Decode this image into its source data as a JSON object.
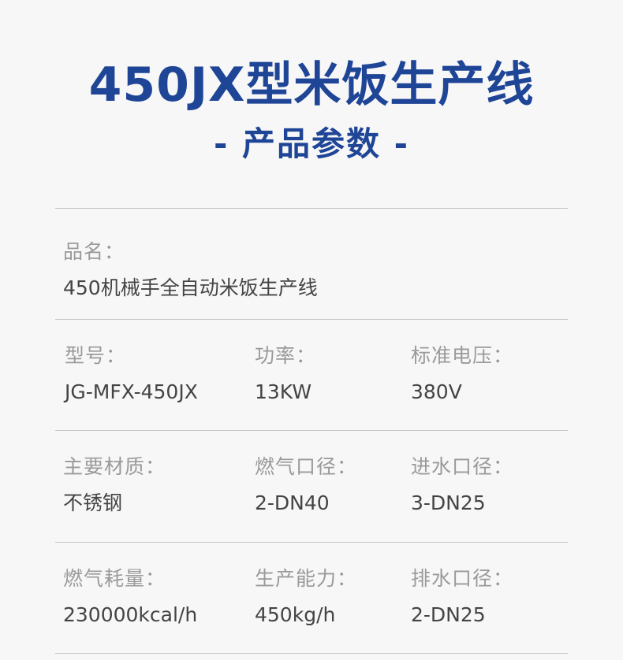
{
  "header": {
    "title": "450JX型米饭生产线",
    "subtitle": "- 产品参数 -"
  },
  "product_name": {
    "label": "品名：",
    "value": "450机械手全自动米饭生产线"
  },
  "rows": [
    [
      {
        "label": "型号：",
        "value": "JG-MFX-450JX"
      },
      {
        "label": "功率：",
        "value": "13KW"
      },
      {
        "label": "标准电压：",
        "value": "380V"
      }
    ],
    [
      {
        "label": "主要材质：",
        "value": "不锈钢"
      },
      {
        "label": "燃气口径：",
        "value": "2-DN40"
      },
      {
        "label": "进水口径：",
        "value": "3-DN25"
      }
    ],
    [
      {
        "label": "燃气耗量：",
        "value": "230000kcal/h"
      },
      {
        "label": "生产能力：",
        "value": "450kg/h"
      },
      {
        "label": "排水口径：",
        "value": "2-DN25"
      }
    ]
  ]
}
